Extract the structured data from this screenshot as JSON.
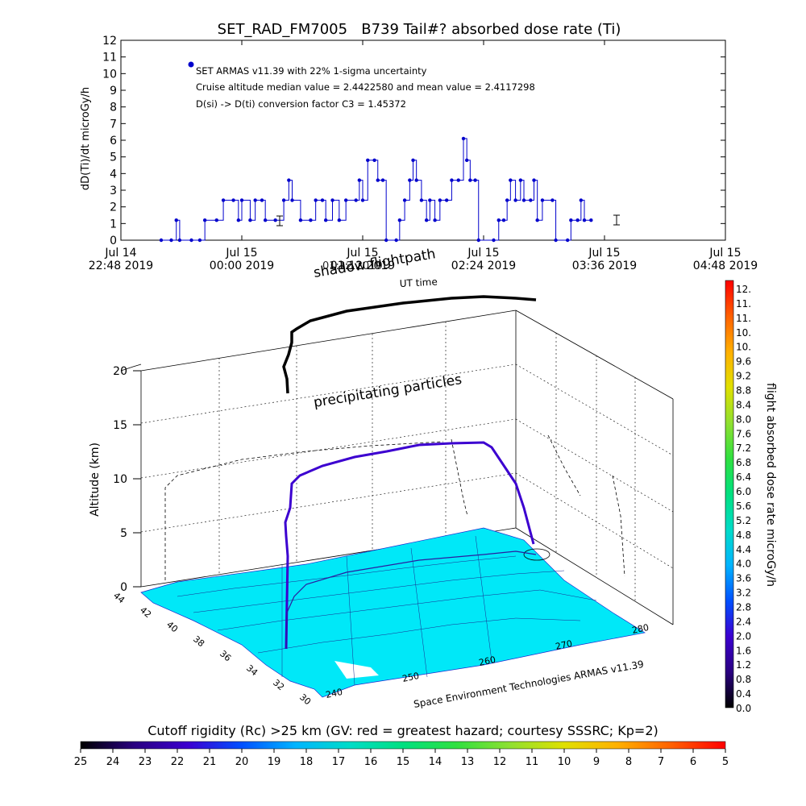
{
  "chart_data": [
    {
      "type": "line",
      "title": "SET_RAD_FM7005   B739 Tail#? absorbed dose rate (Ti)",
      "ylabel": "dD(Ti)/dt microGy/h",
      "ylim": [
        0,
        12
      ],
      "yticks": [
        "0",
        "1",
        "2",
        "3",
        "4",
        "5",
        "6",
        "7",
        "8",
        "9",
        "10",
        "11",
        "12"
      ],
      "xlim": [
        "22:48",
        "04:48"
      ],
      "xticks": [
        {
          "line1": "Jul 14",
          "line2": "22:48 2019"
        },
        {
          "line1": "Jul 15",
          "line2": "00:00 2019"
        },
        {
          "line1": "Jul 15",
          "line2": "01:12 2019"
        },
        {
          "line1": "Jul 15",
          "line2": "02:24 2019"
        },
        {
          "line1": "Jul 15",
          "line2": "03:36 2019"
        },
        {
          "line1": "Jul 15",
          "line2": "04:48 2019"
        }
      ],
      "annotations": [
        "SET ARMAS v11.39 with 22% 1-sigma uncertainty",
        "Cruise altitude median value = 2.4422580 and mean value = 2.4117298",
        "D(si) -> D(ti) conversion factor C3 = 1.45372"
      ],
      "series": [
        {
          "name": "SET ARMAS v11.39 with 22% 1-sigma uncertainty",
          "color": "#0000cc",
          "points": [
            [
              "23:12",
              0.0
            ],
            [
              "23:18",
              0.0
            ],
            [
              "23:21",
              1.2
            ],
            [
              "23:23",
              0.0
            ],
            [
              "23:30",
              0.0
            ],
            [
              "23:35",
              0.0
            ],
            [
              "23:38",
              1.2
            ],
            [
              "23:45",
              1.2
            ],
            [
              "23:49",
              2.4
            ],
            [
              "23:55",
              2.4
            ],
            [
              "23:58",
              1.2
            ],
            [
              "00:00",
              2.4
            ],
            [
              "00:05",
              1.2
            ],
            [
              "00:08",
              2.4
            ],
            [
              "00:12",
              2.4
            ],
            [
              "00:14",
              1.2
            ],
            [
              "00:20",
              1.2
            ],
            [
              "00:25",
              2.4
            ],
            [
              "00:28",
              3.6
            ],
            [
              "00:30",
              2.4
            ],
            [
              "00:35",
              1.2
            ],
            [
              "00:41",
              1.2
            ],
            [
              "00:44",
              2.4
            ],
            [
              "00:48",
              2.4
            ],
            [
              "00:50",
              1.2
            ],
            [
              "00:54",
              2.4
            ],
            [
              "00:58",
              1.2
            ],
            [
              "01:02",
              2.4
            ],
            [
              "01:08",
              2.4
            ],
            [
              "01:10",
              3.6
            ],
            [
              "01:12",
              2.4
            ],
            [
              "01:15",
              4.8
            ],
            [
              "01:19",
              4.8
            ],
            [
              "01:21",
              3.6
            ],
            [
              "01:24",
              3.6
            ],
            [
              "01:26",
              0.0
            ],
            [
              "01:32",
              0.0
            ],
            [
              "01:34",
              1.2
            ],
            [
              "01:37",
              2.4
            ],
            [
              "01:40",
              3.6
            ],
            [
              "01:42",
              4.8
            ],
            [
              "01:44",
              3.6
            ],
            [
              "01:47",
              2.4
            ],
            [
              "01:50",
              1.2
            ],
            [
              "01:52",
              2.4
            ],
            [
              "01:55",
              1.2
            ],
            [
              "01:58",
              2.4
            ],
            [
              "02:02",
              2.4
            ],
            [
              "02:05",
              3.6
            ],
            [
              "02:09",
              3.6
            ],
            [
              "02:12",
              6.1
            ],
            [
              "02:14",
              4.8
            ],
            [
              "02:16",
              3.6
            ],
            [
              "02:19",
              3.6
            ],
            [
              "02:21",
              0.0
            ],
            [
              "02:30",
              0.0
            ],
            [
              "02:33",
              1.2
            ],
            [
              "02:36",
              1.2
            ],
            [
              "02:38",
              2.4
            ],
            [
              "02:40",
              3.6
            ],
            [
              "02:43",
              2.4
            ],
            [
              "02:46",
              3.6
            ],
            [
              "02:48",
              2.4
            ],
            [
              "02:52",
              2.4
            ],
            [
              "02:54",
              3.6
            ],
            [
              "02:56",
              1.2
            ],
            [
              "02:59",
              2.4
            ],
            [
              "03:05",
              2.4
            ],
            [
              "03:07",
              0.0
            ],
            [
              "03:14",
              0.0
            ],
            [
              "03:16",
              1.2
            ],
            [
              "03:20",
              1.2
            ],
            [
              "03:22",
              2.4
            ],
            [
              "03:24",
              1.2
            ],
            [
              "03:28",
              1.2
            ]
          ]
        }
      ]
    },
    {
      "type": "scatter",
      "title": "",
      "xlabel": "",
      "ylabel": "Altitude (km)",
      "zlim": [
        0,
        20
      ],
      "zticks": [
        "0",
        "5",
        "10",
        "15",
        "20"
      ],
      "lat_ticks": [
        "44",
        "42",
        "40",
        "38",
        "36",
        "34",
        "32",
        "30"
      ],
      "lon_ticks": [
        "240",
        "250",
        "260",
        "270",
        "280"
      ],
      "labels": {
        "flightpath": "shadow flightpath",
        "ut_time": "UT time",
        "ut_time_overlay": "01:12 2019",
        "precip": "precipitating particles",
        "credit": "Space Environment Technologies ARMAS v11.39"
      },
      "colorbar": {
        "label": "flight absorbed dose rate microGy/h",
        "ticks": [
          "12.",
          "11.",
          "11.",
          "10.",
          "10.",
          "9.6",
          "9.2",
          "8.8",
          "8.4",
          "8.0",
          "7.6",
          "7.2",
          "6.8",
          "6.4",
          "6.0",
          "5.6",
          "5.2",
          "4.8",
          "4.4",
          "4.0",
          "3.6",
          "3.2",
          "2.8",
          "2.4",
          "2.0",
          "1.6",
          "1.2",
          "0.8",
          "0.4",
          "0.0"
        ],
        "colors": [
          "#000000",
          "#2a0080",
          "#3c00d0",
          "#0050ff",
          "#00b4ff",
          "#00dcc8",
          "#00e080",
          "#30e040",
          "#90e030",
          "#e0e000",
          "#ffb000",
          "#ff6000",
          "#ff0000"
        ]
      }
    },
    {
      "type": "heatmap",
      "title": "Cutoff rigidity (Rc) >25 km (GV: red = greatest hazard; courtesy SSSRC; Kp=2)",
      "ticks": [
        "25",
        "24",
        "23",
        "22",
        "21",
        "20",
        "19",
        "18",
        "17",
        "16",
        "15",
        "14",
        "13",
        "12",
        "11",
        "10",
        "9",
        "8",
        "7",
        "6",
        "5"
      ],
      "colors": [
        "#000000",
        "#2a0080",
        "#3c00d0",
        "#0050ff",
        "#00b4ff",
        "#00dcc8",
        "#00e080",
        "#30e040",
        "#90e030",
        "#e0e000",
        "#ffb000",
        "#ff6000",
        "#ff0000"
      ]
    }
  ]
}
